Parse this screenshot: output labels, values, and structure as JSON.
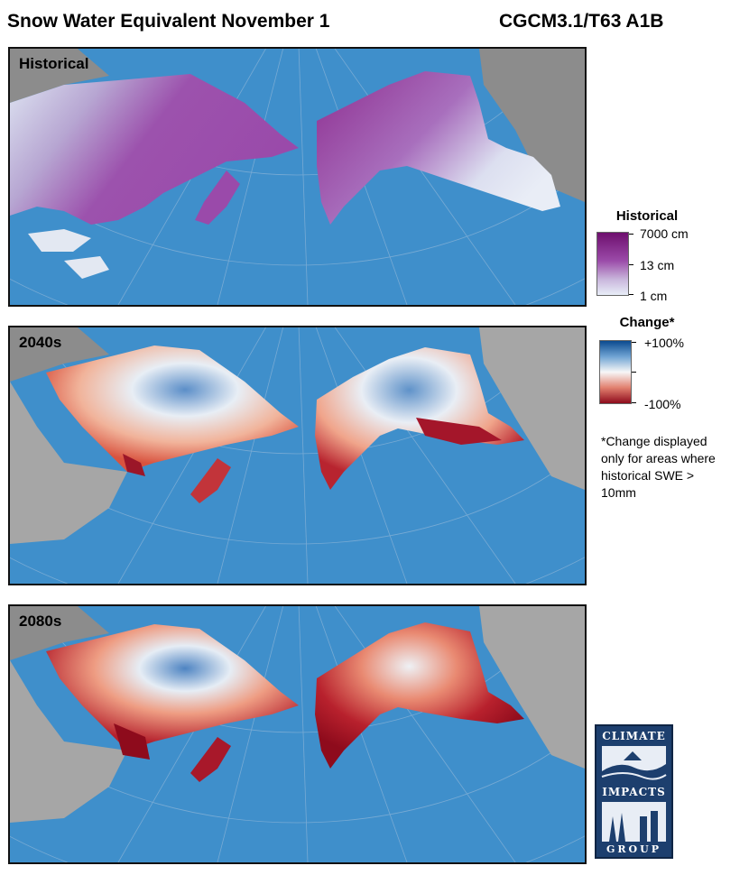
{
  "header": {
    "title": "Snow Water Equivalent November 1",
    "model": "CGCM3.1/T63 A1B"
  },
  "panels": [
    {
      "label": "Historical"
    },
    {
      "label": "2040s"
    },
    {
      "label": "2080s"
    }
  ],
  "legend_historical": {
    "title": "Historical",
    "max_label": "7000 cm",
    "mid_label": "13 cm",
    "min_label": "1 cm",
    "colors": [
      "#6e0f6e",
      "#9b4ba9",
      "#e8eef8"
    ]
  },
  "legend_change": {
    "title": "Change*",
    "max_label": "+100%",
    "min_label": "-100%",
    "colors": [
      "#0b4a8f",
      "#f7f7f7",
      "#8e0b1c"
    ]
  },
  "footnote": "*Change displayed only for areas where historical SWE > 10mm",
  "logo": {
    "line1": "CLIMATE",
    "line2": "IMPACTS",
    "line3": "GROUP"
  },
  "colors": {
    "ocean": "#3f8fcb",
    "land_no_data": "#a6a6a6",
    "land_other": "#8c8c8c"
  }
}
